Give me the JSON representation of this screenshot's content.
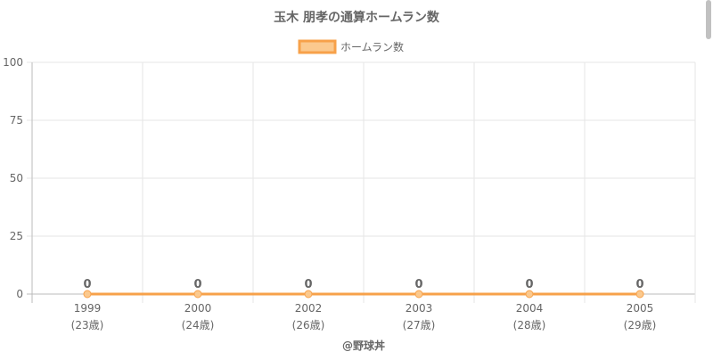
{
  "chart_data": {
    "type": "line",
    "title": "玉木 朋孝の通算ホームラン数",
    "x": [
      "1999",
      "2000",
      "2002",
      "2003",
      "2004",
      "2005"
    ],
    "x_sublabels": [
      "(23歳)",
      "(24歳)",
      "(26歳)",
      "(27歳)",
      "(28歳)",
      "(29歳)"
    ],
    "series": [
      {
        "name": "ホームラン数",
        "values": [
          0,
          0,
          0,
          0,
          0,
          0
        ],
        "color": "#f7a14a",
        "fill": "#fbc98e"
      }
    ],
    "data_labels": [
      "0",
      "0",
      "0",
      "0",
      "0",
      "0"
    ],
    "ylim": [
      0,
      100
    ],
    "yticks": [
      0,
      25,
      50,
      75,
      100
    ],
    "grid": true,
    "legend_position": "top",
    "footer": "@野球丼"
  }
}
